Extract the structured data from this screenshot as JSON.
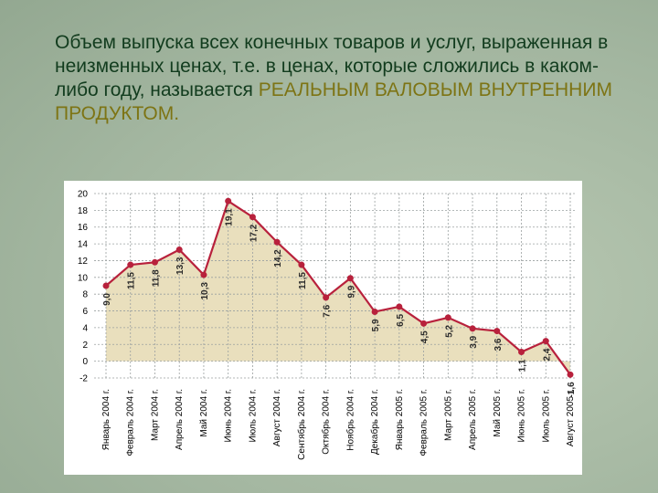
{
  "slide": {
    "text": "Объем выпуска всех конечных товаров и услуг, выраженная в неизменных ценах, т.е. в ценах, которые сложились в каком-либо году, называется",
    "highlight": "РЕАЛЬНЫМ ВАЛОВЫМ ВНУТРЕННИМ ПРОДУКТОМ."
  },
  "chart_data": {
    "type": "line",
    "categories": [
      "Январь 2004 г.",
      "Февраль 2004 г.",
      "Март 2004 г.",
      "Апрель 2004 г.",
      "Май 2004 г.",
      "Июнь 2004 г.",
      "Июль 2004 г.",
      "Август 2004 г.",
      "Сентябрь 2004 г.",
      "Октябрь 2004 г.",
      "Ноябрь 2004 г.",
      "Декабрь 2004 г.",
      "Январь 2005 г.",
      "Февраль 2005 г.",
      "Март 2005 г.",
      "Апрель 2005 г.",
      "Май 2005 г.",
      "Июнь 2005 г.",
      "Июль 2005 г.",
      "Август 2005 г."
    ],
    "values": [
      9.0,
      11.5,
      11.8,
      13.3,
      10.3,
      19.1,
      17.2,
      14.2,
      11.5,
      7.6,
      9.9,
      5.9,
      6.5,
      4.5,
      5.2,
      3.9,
      3.6,
      1.1,
      2.4,
      -1.6
    ],
    "value_labels": [
      "9,0",
      "11,5",
      "11,8",
      "13,3",
      "10,3",
      "19,1",
      "17,2",
      "14,2",
      "11,5",
      "7,6",
      "9,9",
      "5,9",
      "6,5",
      "4,5",
      "5,2",
      "3,9",
      "3,6",
      "1,1",
      "2,4",
      "-1,6"
    ],
    "color": "#b8213c",
    "fill": "#e9dfbd",
    "ylim": [
      -2,
      20
    ],
    "yticks": [
      -2,
      0,
      2,
      4,
      6,
      8,
      10,
      12,
      14,
      16,
      18,
      20
    ],
    "grid": true
  }
}
